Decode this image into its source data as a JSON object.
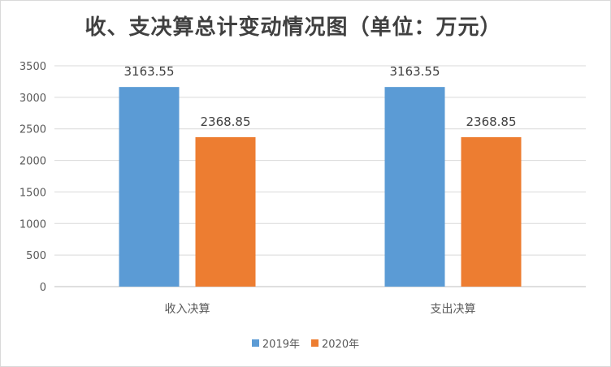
{
  "chart_data": {
    "type": "bar",
    "title": "收、支决算总计变动情况图（单位：万元）",
    "categories": [
      "收入决算",
      "支出决算"
    ],
    "series": [
      {
        "name": "2019年",
        "values": [
          3163.55,
          3163.55
        ],
        "labels": [
          "3163.55",
          "3163.55"
        ],
        "color": "#5b9bd5"
      },
      {
        "name": "2020年",
        "values": [
          2368.85,
          2368.85
        ],
        "labels": [
          "2368.85",
          "2368.85"
        ],
        "color": "#ed7d31"
      }
    ],
    "ylim": [
      0,
      3500
    ],
    "yticks": [
      "0",
      "500",
      "1000",
      "1500",
      "2000",
      "2500",
      "3000",
      "3500"
    ],
    "grid": true,
    "legend_position": "bottom"
  }
}
